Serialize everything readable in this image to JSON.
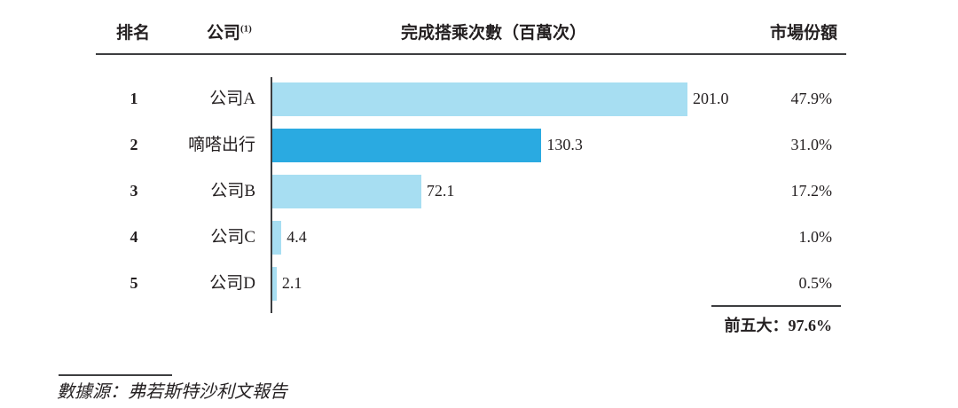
{
  "header": {
    "rank": "排名",
    "company": "公司",
    "company_note": "(1)",
    "rides": "完成搭乘次數（百萬次）",
    "share": "市場份額"
  },
  "chart_data": {
    "type": "bar",
    "orientation": "horizontal",
    "title": "",
    "xlabel": "完成搭乘次數（百萬次）",
    "x_range": [
      0,
      201
    ],
    "grid": false,
    "categories": [
      "公司A",
      "嘀嗒出行",
      "公司B",
      "公司C",
      "公司D"
    ],
    "values": [
      201.0,
      130.3,
      72.1,
      4.4,
      2.1
    ],
    "rows": [
      {
        "rank": "1",
        "company": "公司A",
        "rides": "201.0",
        "share": "47.9%",
        "highlight": false
      },
      {
        "rank": "2",
        "company": "嘀嗒出行",
        "rides": "130.3",
        "share": "31.0%",
        "highlight": true
      },
      {
        "rank": "3",
        "company": "公司B",
        "rides": "72.1",
        "share": "17.2%",
        "highlight": false
      },
      {
        "rank": "4",
        "company": "公司C",
        "rides": "4.4",
        "share": "1.0%",
        "highlight": false
      },
      {
        "rank": "5",
        "company": "公司D",
        "rides": "2.1",
        "share": "0.5%",
        "highlight": false
      }
    ],
    "colors": {
      "bar_default": "#a7def2",
      "bar_highlight": "#2aaae1",
      "text": "#231f20",
      "rule": "#3d3e40"
    }
  },
  "summary": {
    "label": "前五大：",
    "value": "97.6%"
  },
  "footnote": {
    "text": "數據源：弗若斯特沙利文報告"
  }
}
